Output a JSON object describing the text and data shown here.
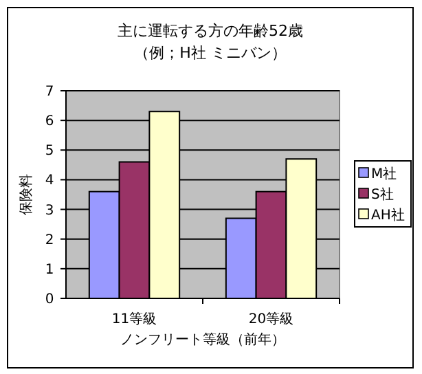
{
  "chart_data": {
    "type": "bar",
    "title": "主に運転する方の年齢52歳",
    "subtitle": "（例；H社 ミニバン）",
    "xlabel": "ノンフリート等級（前年）",
    "ylabel": "保険料",
    "categories": [
      "11等級",
      "20等級"
    ],
    "series": [
      {
        "name": "M社",
        "color": "#9999ff",
        "values": [
          3.6,
          2.7
        ]
      },
      {
        "name": "S社",
        "color": "#993366",
        "values": [
          4.6,
          3.6
        ]
      },
      {
        "name": "AH社",
        "color": "#ffffcc",
        "values": [
          6.3,
          4.7
        ]
      }
    ],
    "ylim": [
      0,
      7
    ],
    "yticks": [
      0,
      1,
      2,
      3,
      4,
      5,
      6,
      7
    ],
    "grid": "y",
    "legend": "right"
  }
}
